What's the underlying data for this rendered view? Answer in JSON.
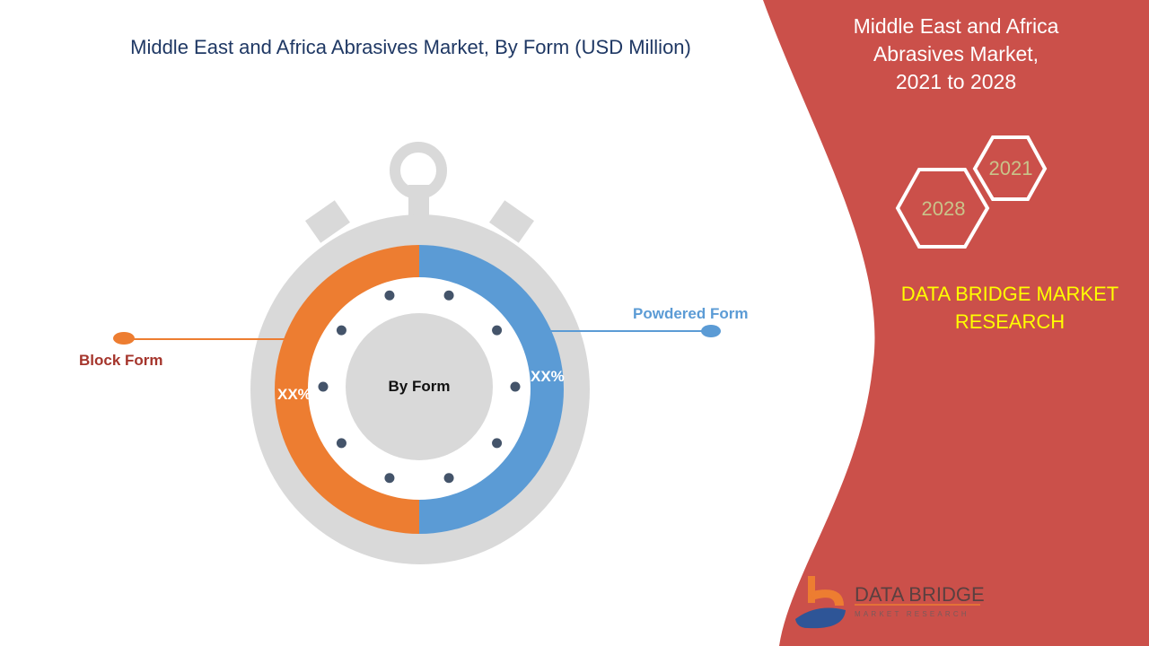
{
  "title": "Middle East and Africa Abrasives Market, By Form (USD Million)",
  "side_panel": {
    "title_lines": [
      "Middle East and Africa",
      "Abrasives Market,",
      "2021 to 2028"
    ],
    "hex_years": [
      "2021",
      "2028"
    ],
    "brand_lines": [
      "DATA BRIDGE MARKET",
      "RESEARCH"
    ],
    "logo_text": "DATA BRIDGE",
    "logo_subtext": "MARKET RESEARCH",
    "panel_color": "#cb504a"
  },
  "chart_data": {
    "type": "pie",
    "title": "Middle East and Africa Abrasives Market, By Form (USD Million)",
    "center_label": "By Form",
    "categories": [
      "Block Form",
      "Powdered Form"
    ],
    "data_labels": [
      "XX%",
      "XX%"
    ],
    "values": [
      50,
      50
    ],
    "colors": [
      "#ed7d31",
      "#5b9bd5"
    ]
  }
}
